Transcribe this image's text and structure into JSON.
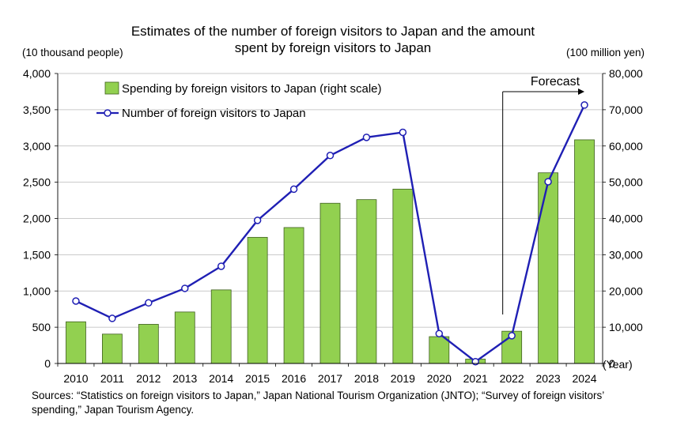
{
  "chart_data": {
    "type": "bar+line",
    "title_lines": [
      "Estimates of the number of foreign visitors to Japan and the amount",
      "spent by foreign visitors to Japan"
    ],
    "left_axis_unit": "(10 thousand people)",
    "right_axis_unit": "(100 million yen)",
    "x_axis_unit": "(Year)",
    "categories": [
      "2010",
      "2011",
      "2012",
      "2013",
      "2014",
      "2015",
      "2016",
      "2017",
      "2018",
      "2019",
      "2020",
      "2021",
      "2022",
      "2023",
      "2024"
    ],
    "left_ylim": [
      0,
      4000
    ],
    "left_ticks": [
      "0",
      "500",
      "1,000",
      "1,500",
      "2,000",
      "2,500",
      "3,000",
      "3,500",
      "4,000"
    ],
    "right_ylim": [
      0,
      80000
    ],
    "right_ticks": [
      "0",
      "10,000",
      "20,000",
      "30,000",
      "40,000",
      "50,000",
      "60,000",
      "70,000",
      "80,000"
    ],
    "grid": true,
    "legend_position": "top-left",
    "series": [
      {
        "name": "Spending by foreign visitors to Japan (right scale)",
        "type": "bar",
        "axis": "right",
        "color": "#92d050",
        "values": [
          11500,
          8100,
          10800,
          14200,
          20300,
          34800,
          37500,
          44200,
          45200,
          48100,
          7400,
          1200,
          8900,
          52600,
          61700
        ]
      },
      {
        "name": "Number of foreign visitors to Japan",
        "type": "line",
        "axis": "left",
        "color": "#1f1fb4",
        "values": [
          861,
          622,
          836,
          1036,
          1341,
          1974,
          2404,
          2869,
          3119,
          3188,
          412,
          25,
          383,
          2507,
          3565
        ]
      }
    ],
    "annotation": {
      "text": "Forecast",
      "from_category": "2022"
    }
  },
  "source_note": "Sources: “Statistics on foreign visitors to Japan,” Japan National Tourism Organization (JNTO); “Survey of foreign visitors’ spending,” Japan Tourism Agency."
}
